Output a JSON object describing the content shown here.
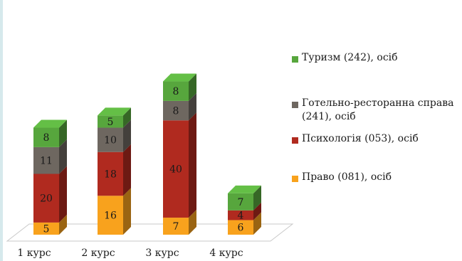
{
  "chart_data": {
    "type": "bar",
    "stacked": true,
    "three_d": true,
    "categories": [
      "1 курс",
      "2 курс",
      "3 курс",
      "4 курс"
    ],
    "series": [
      {
        "name": "Право (081), осіб",
        "values": [
          5,
          16,
          7,
          6
        ],
        "color": "#f8a21d"
      },
      {
        "name": "Психологія (053), осіб",
        "values": [
          20,
          18,
          40,
          4
        ],
        "color": "#b02a1f"
      },
      {
        "name": "Готельно-ресторанна справа (241), осіб",
        "values": [
          11,
          10,
          8,
          0
        ],
        "color": "#6e6760"
      },
      {
        "name": "Туризм (242), осіб",
        "values": [
          8,
          5,
          8,
          7
        ],
        "color": "#57a63d"
      }
    ],
    "data_labels": [
      [
        "5",
        "16",
        "7",
        "6"
      ],
      [
        "20",
        "18",
        "40",
        "4"
      ],
      [
        "11",
        "10",
        "8",
        ""
      ],
      [
        "8",
        "5",
        "8",
        "7"
      ]
    ],
    "legend_order": [
      3,
      2,
      1,
      0
    ],
    "legend_position": "right",
    "title": "",
    "xlabel": "",
    "ylabel": "",
    "grid": false
  }
}
